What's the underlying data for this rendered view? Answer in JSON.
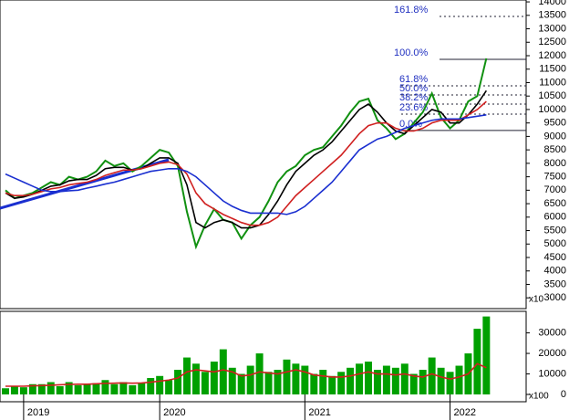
{
  "chart_data": [
    {
      "type": "line",
      "ylim": [
        2600,
        14070
      ],
      "yticks": [
        3000,
        3500,
        4000,
        4500,
        5000,
        5500,
        6000,
        6500,
        7000,
        7500,
        8000,
        8500,
        9000,
        9500,
        10000,
        10500,
        11000,
        11500,
        12000,
        12500,
        13000,
        13500,
        14000
      ],
      "axis_unit": "x10",
      "series": [
        {
          "color": "#109010",
          "values": [
            7000,
            6700,
            6800,
            6900,
            7100,
            7300,
            7200,
            7500,
            7400,
            7500,
            7700,
            8100,
            7900,
            8000,
            7700,
            7900,
            8200,
            8500,
            8400,
            7900,
            6200,
            4900,
            5700,
            6300,
            5900,
            5800,
            5200,
            5700,
            6000,
            6600,
            7300,
            7700,
            7900,
            8300,
            8500,
            8600,
            9000,
            9400,
            9900,
            10300,
            10400,
            9600,
            9300,
            8900,
            9100,
            9500,
            9900,
            10600,
            9700,
            9300,
            9600,
            10300,
            10500,
            11900
          ]
        },
        {
          "color": "#000000",
          "values": [
            6900,
            6700,
            6750,
            6850,
            7000,
            7150,
            7200,
            7350,
            7400,
            7400,
            7550,
            7800,
            7850,
            7850,
            7750,
            7800,
            8000,
            8200,
            8200,
            8000,
            7200,
            5800,
            5600,
            5800,
            5900,
            5800,
            5600,
            5600,
            5700,
            6100,
            6600,
            7200,
            7700,
            8000,
            8300,
            8500,
            8800,
            9200,
            9600,
            10000,
            10200,
            9900,
            9500,
            9200,
            9100,
            9400,
            9700,
            10000,
            9900,
            9500,
            9500,
            9800,
            10200,
            10700
          ]
        },
        {
          "color": "#d02020",
          "values": [
            6900,
            6800,
            6800,
            6850,
            6950,
            7050,
            7100,
            7200,
            7250,
            7300,
            7400,
            7550,
            7650,
            7750,
            7750,
            7800,
            7900,
            8000,
            8050,
            7950,
            7600,
            6900,
            6500,
            6300,
            6100,
            5950,
            5800,
            5700,
            5700,
            5800,
            6000,
            6400,
            6800,
            7100,
            7400,
            7700,
            8000,
            8300,
            8700,
            9100,
            9400,
            9500,
            9500,
            9300,
            9200,
            9200,
            9300,
            9500,
            9600,
            9600,
            9600,
            9800,
            10000,
            10300
          ]
        },
        {
          "color": "#1a2fd0",
          "values": [
            7600,
            7450,
            7300,
            7150,
            7000,
            6950,
            6950,
            6980,
            7000,
            7080,
            7150,
            7230,
            7300,
            7400,
            7500,
            7600,
            7700,
            7750,
            7800,
            7800,
            7700,
            7500,
            7200,
            6900,
            6600,
            6400,
            6250,
            6150,
            6150,
            6150,
            6150,
            6100,
            6200,
            6400,
            6700,
            7000,
            7300,
            7700,
            8100,
            8500,
            8700,
            8900,
            9000,
            9150,
            9300,
            9400,
            9500,
            9600,
            9650,
            9650,
            9650,
            9700,
            9750,
            9800
          ]
        }
      ],
      "levels": [
        {
          "label": "161.8%",
          "value": 13460
        },
        {
          "label": "100.0%",
          "value": 11865
        },
        {
          "label": "61.8%",
          "value": 10880
        },
        {
          "label": "50.0%",
          "value": 10540
        },
        {
          "label": "38.2%",
          "value": 10200
        },
        {
          "label": "23.6%",
          "value": 9830
        },
        {
          "label": "0.0%",
          "value": 9220
        }
      ]
    },
    {
      "type": "bar",
      "categories": [
        null,
        null,
        "2019",
        null,
        null,
        null,
        null,
        null,
        null,
        null,
        null,
        null,
        null,
        null,
        null,
        null,
        null,
        "2020",
        null,
        null,
        null,
        null,
        null,
        null,
        null,
        null,
        null,
        null,
        null,
        null,
        null,
        null,
        null,
        "2021",
        null,
        null,
        null,
        null,
        null,
        null,
        null,
        null,
        null,
        null,
        null,
        null,
        null,
        null,
        null,
        "2022",
        null,
        null,
        null,
        null
      ],
      "ylim": [
        0,
        40500
      ],
      "yticks": [
        0,
        10000,
        20000,
        30000
      ],
      "axis_unit": "x100",
      "series": [
        {
          "color": "#00a000",
          "values": [
            3000,
            4000,
            3500,
            5000,
            5000,
            6000,
            4000,
            6000,
            4500,
            5000,
            5500,
            7000,
            5000,
            6000,
            4500,
            5500,
            8000,
            9000,
            7000,
            12000,
            18000,
            15000,
            11000,
            16000,
            22000,
            13000,
            10000,
            14000,
            20000,
            11000,
            12000,
            17000,
            15000,
            14000,
            10000,
            12000,
            9000,
            11000,
            13000,
            15000,
            16000,
            12000,
            14000,
            13000,
            15000,
            10000,
            12000,
            18000,
            13000,
            11000,
            14000,
            20000,
            32000,
            38000
          ]
        },
        {
          "type": "line",
          "color": "#d02020",
          "values": [
            4000,
            4000,
            4000,
            4200,
            4300,
            4500,
            4700,
            4900,
            5000,
            5000,
            5200,
            5400,
            5500,
            5600,
            5500,
            5600,
            6000,
            6500,
            7000,
            8000,
            11000,
            12000,
            11500,
            11000,
            12000,
            11000,
            9000,
            9500,
            11000,
            10500,
            10000,
            11000,
            12000,
            11000,
            9500,
            9000,
            8500,
            8500,
            9000,
            10000,
            11000,
            10000,
            10000,
            9500,
            10000,
            9000,
            8500,
            10000,
            8500,
            7500,
            8500,
            10000,
            15000,
            13000
          ]
        }
      ]
    }
  ]
}
